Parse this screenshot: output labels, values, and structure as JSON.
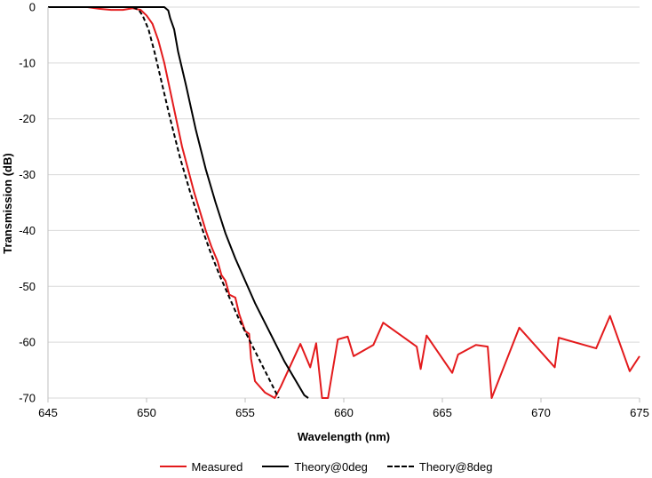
{
  "chart_data": {
    "type": "line",
    "title": "",
    "xlabel": "Wavelength (nm)",
    "ylabel": "Transmission (dB)",
    "xlim": [
      645,
      675
    ],
    "ylim": [
      -70,
      0
    ],
    "x_ticks": [
      645,
      650,
      655,
      660,
      665,
      670,
      675
    ],
    "y_ticks": [
      0,
      -10,
      -20,
      -30,
      -40,
      -50,
      -60,
      -70
    ],
    "grid": "horizontal",
    "legend_position": "bottom",
    "series": [
      {
        "name": "Measured",
        "color": "#e31a1c",
        "style": "solid",
        "points": [
          [
            645,
            0
          ],
          [
            646,
            0
          ],
          [
            647,
            0
          ],
          [
            647.6,
            -0.3
          ],
          [
            648.2,
            -0.5
          ],
          [
            648.8,
            -0.5
          ],
          [
            649.3,
            -0.2
          ],
          [
            649.7,
            -0.5
          ],
          [
            650,
            -1.5
          ],
          [
            650.3,
            -3
          ],
          [
            650.6,
            -6
          ],
          [
            650.9,
            -10
          ],
          [
            651.2,
            -15
          ],
          [
            651.5,
            -20
          ],
          [
            651.8,
            -25
          ],
          [
            652.1,
            -29
          ],
          [
            652.4,
            -33
          ],
          [
            652.7,
            -36.5
          ],
          [
            653.0,
            -40
          ],
          [
            653.3,
            -43
          ],
          [
            653.6,
            -45.5
          ],
          [
            653.8,
            -48
          ],
          [
            654.0,
            -49
          ],
          [
            654.2,
            -51.5
          ],
          [
            654.5,
            -52
          ],
          [
            654.7,
            -55
          ],
          [
            655.0,
            -58
          ],
          [
            655.2,
            -58.5
          ],
          [
            655.3,
            -63
          ],
          [
            655.5,
            -67
          ],
          [
            656.0,
            -69
          ],
          [
            656.5,
            -70
          ],
          [
            656.8,
            -68
          ],
          [
            657.8,
            -60.3
          ],
          [
            658.3,
            -64.5
          ],
          [
            658.6,
            -60.2
          ],
          [
            658.9,
            -70
          ],
          [
            659.2,
            -70
          ],
          [
            659.7,
            -59.5
          ],
          [
            660.2,
            -59
          ],
          [
            660.5,
            -62.5
          ],
          [
            661.5,
            -60.5
          ],
          [
            662.0,
            -56.5
          ],
          [
            663.7,
            -60.8
          ],
          [
            663.9,
            -64.8
          ],
          [
            664.2,
            -58.8
          ],
          [
            665.5,
            -65.5
          ],
          [
            665.8,
            -62.2
          ],
          [
            666.7,
            -60.5
          ],
          [
            667.3,
            -60.8
          ],
          [
            667.5,
            -70
          ],
          [
            668.9,
            -57.4
          ],
          [
            670.7,
            -64.5
          ],
          [
            670.9,
            -59.2
          ],
          [
            672.8,
            -61.1
          ],
          [
            673.5,
            -55.3
          ],
          [
            674.5,
            -65.2
          ],
          [
            675,
            -62.5
          ]
        ]
      },
      {
        "name": "Theory@0deg",
        "color": "#000000",
        "style": "solid",
        "points": [
          [
            645,
            0
          ],
          [
            646,
            0
          ],
          [
            647,
            0
          ],
          [
            648,
            0
          ],
          [
            649,
            0
          ],
          [
            650,
            0
          ],
          [
            650.9,
            0
          ],
          [
            651.1,
            -0.6
          ],
          [
            651.2,
            -2
          ],
          [
            651.4,
            -4
          ],
          [
            651.6,
            -8
          ],
          [
            652,
            -14
          ],
          [
            652.5,
            -22
          ],
          [
            653,
            -29
          ],
          [
            653.5,
            -35
          ],
          [
            654,
            -40.5
          ],
          [
            654.5,
            -45
          ],
          [
            655,
            -49
          ],
          [
            655.5,
            -53
          ],
          [
            656,
            -56.5
          ],
          [
            656.5,
            -60
          ],
          [
            657,
            -63.5
          ],
          [
            657.5,
            -66.5
          ],
          [
            658,
            -69.5
          ],
          [
            658.2,
            -70
          ]
        ]
      },
      {
        "name": "Theory@8deg",
        "color": "#000000",
        "style": "dashed",
        "points": [
          [
            645,
            0
          ],
          [
            646,
            0
          ],
          [
            647,
            0
          ],
          [
            648,
            0
          ],
          [
            649,
            0
          ],
          [
            649.3,
            0
          ],
          [
            649.6,
            -0.5
          ],
          [
            649.8,
            -1.5
          ],
          [
            650.1,
            -4
          ],
          [
            650.4,
            -8
          ],
          [
            650.8,
            -14
          ],
          [
            651.2,
            -20
          ],
          [
            651.7,
            -27
          ],
          [
            652.2,
            -33
          ],
          [
            652.7,
            -38.5
          ],
          [
            653.2,
            -43.5
          ],
          [
            653.7,
            -48
          ],
          [
            654.2,
            -52
          ],
          [
            654.7,
            -56
          ],
          [
            655.2,
            -59.5
          ],
          [
            655.7,
            -63
          ],
          [
            656.2,
            -66.5
          ],
          [
            656.7,
            -70
          ]
        ]
      }
    ]
  }
}
